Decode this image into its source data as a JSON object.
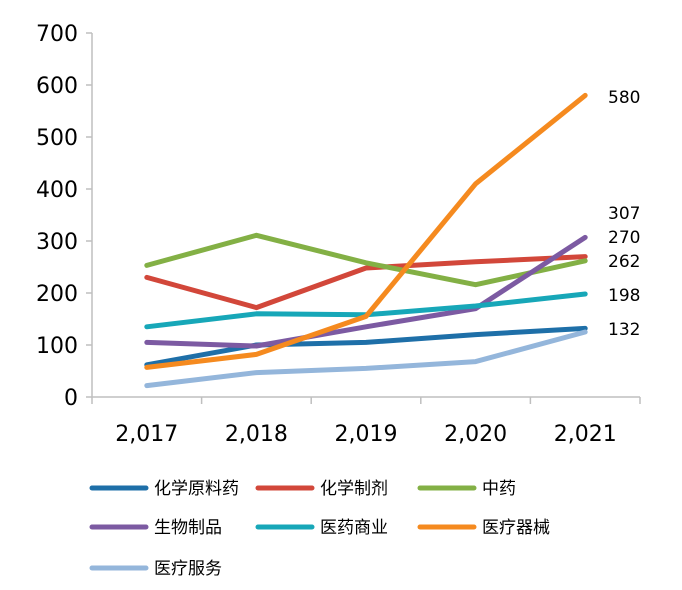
{
  "chart_data": {
    "type": "line",
    "title": "",
    "xlabel": "",
    "ylabel": "",
    "x": [
      "2,017",
      "2,018",
      "2,019",
      "2,020",
      "2,021"
    ],
    "ylim": [
      0,
      700
    ],
    "yticks": [
      "0",
      "100",
      "200",
      "300",
      "400",
      "500",
      "600",
      "700"
    ],
    "grid": false,
    "legend_position": "bottom",
    "series": [
      {
        "name": "化学原料药",
        "color": "#1e6fa8",
        "values": [
          62,
          100,
          105,
          120,
          132
        ]
      },
      {
        "name": "化学制剂",
        "color": "#d2473a",
        "values": [
          230,
          172,
          248,
          260,
          270
        ]
      },
      {
        "name": "中药",
        "color": "#83b045",
        "values": [
          253,
          311,
          258,
          216,
          262
        ]
      },
      {
        "name": "生物制品",
        "color": "#7c5aa2",
        "values": [
          105,
          98,
          135,
          170,
          307
        ]
      },
      {
        "name": "医药商业",
        "color": "#17a7b8",
        "values": [
          135,
          160,
          158,
          175,
          198
        ]
      },
      {
        "name": "医疗器械",
        "color": "#f58a1f",
        "values": [
          57,
          82,
          155,
          410,
          580
        ]
      },
      {
        "name": "医疗服务",
        "color": "#94b6db",
        "values": [
          22,
          47,
          55,
          68,
          125
        ]
      }
    ],
    "end_labels": [
      "580",
      "307",
      "270",
      "262",
      "198",
      "132"
    ]
  }
}
